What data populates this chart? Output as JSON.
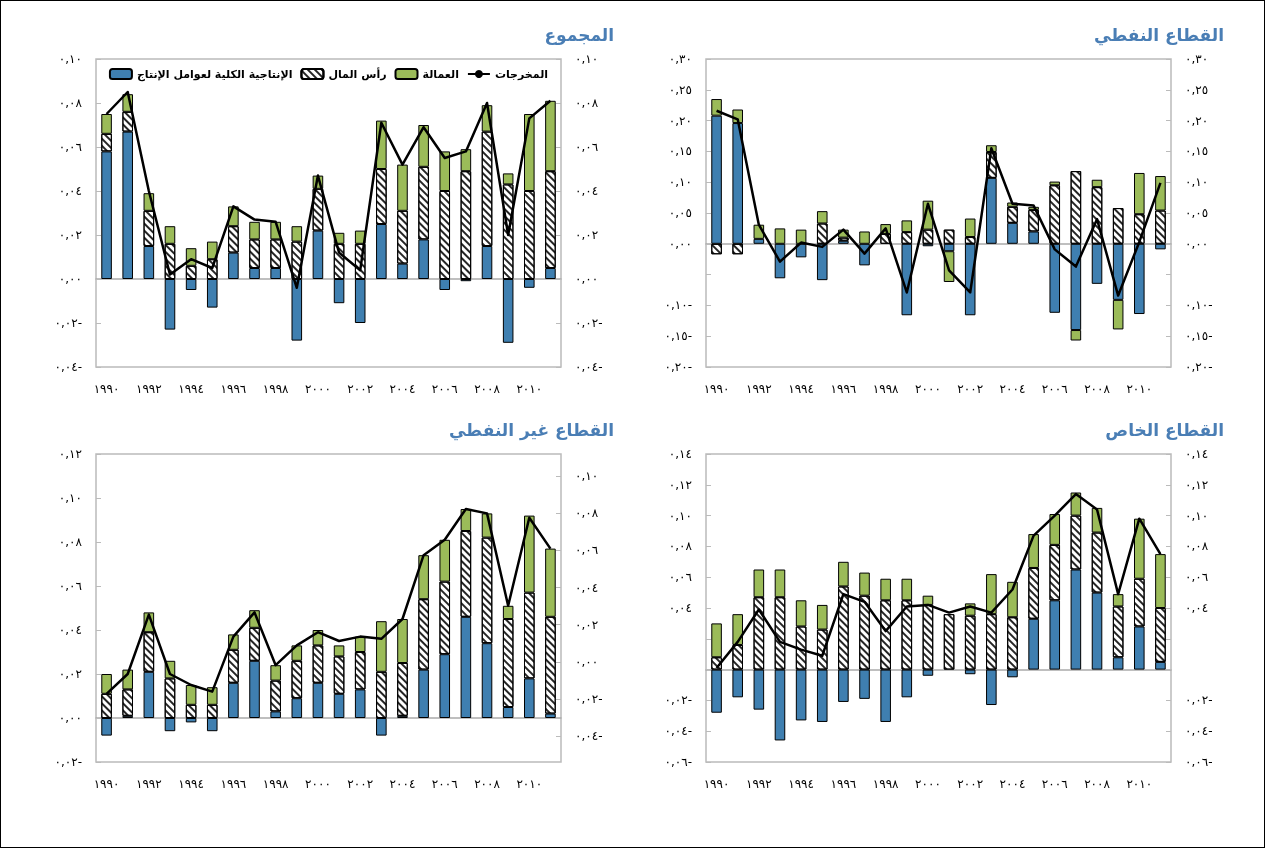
{
  "chart_data": [
    {
      "type": "bar",
      "title": "المجموع",
      "stacked": true,
      "legend": "top",
      "marker": "none",
      "categories": [
        "١٩٩٠",
        null,
        "١٩٩٢",
        null,
        "١٩٩٤",
        null,
        "١٩٩٦",
        null,
        "١٩٩٨",
        null,
        "٢٠٠٠",
        null,
        "٢٠٠٢",
        null,
        "٢٠٠٤",
        null,
        "٢٠٠٦",
        null,
        "٢٠٠٨",
        null,
        "٢٠١٠",
        null
      ],
      "ylim": [
        -0.04,
        0.1
      ],
      "yticks": [
        {
          "value": -0.04,
          "label": "٠,٠٤-"
        },
        {
          "value": -0.02,
          "label": "٠,٠٢-"
        },
        {
          "value": 0,
          "label": "٠,٠٠"
        },
        {
          "value": 0.02,
          "label": "٠,٠٢"
        },
        {
          "value": 0.04,
          "label": "٠,٠٤"
        },
        {
          "value": 0.06,
          "label": "٠,٠٦"
        },
        {
          "value": 0.08,
          "label": "٠,٠٨"
        },
        {
          "value": 0.1,
          "label": "٠,١٠"
        }
      ],
      "y2lim": [
        -0.04,
        0.1
      ],
      "y2ticks": [
        {
          "value": -0.04,
          "label": "٠,٠٤-"
        },
        {
          "value": -0.02,
          "label": "٠,٠٢-"
        },
        {
          "value": 0,
          "label": "٠,٠٠"
        },
        {
          "value": 0.02,
          "label": "٠,٠٢"
        },
        {
          "value": 0.04,
          "label": "٠,٠٤"
        },
        {
          "value": 0.06,
          "label": "٠,٠٦"
        },
        {
          "value": 0.08,
          "label": "٠,٠٨"
        },
        {
          "value": 0.1,
          "label": "٠,١٠"
        }
      ],
      "series": [
        {
          "name": "الإنتاجية الكلية لعوامل الإنتاج",
          "color": "#3f7fb0",
          "values": [
            0.058,
            0.067,
            0.015,
            -0.023,
            -0.005,
            -0.013,
            0.012,
            0.005,
            0.005,
            -0.028,
            0.022,
            -0.011,
            -0.02,
            0.025,
            0.007,
            0.018,
            -0.005,
            -0.001,
            0.015,
            -0.029,
            -0.004,
            0.005
          ]
        },
        {
          "name": "رأس المال",
          "color": "#ffffff",
          "values": [
            0.008,
            0.009,
            0.016,
            0.016,
            0.006,
            0.009,
            0.012,
            0.013,
            0.013,
            0.017,
            0.019,
            0.016,
            0.016,
            0.025,
            0.024,
            0.033,
            0.04,
            0.049,
            0.052,
            0.043,
            0.04,
            0.044
          ]
        },
        {
          "name": "العمالة",
          "color": "#9bbb59",
          "values": [
            0.009,
            0.008,
            0.008,
            0.008,
            0.008,
            0.008,
            0.009,
            0.008,
            0.008,
            0.007,
            0.006,
            0.005,
            0.006,
            0.022,
            0.021,
            0.019,
            0.018,
            0.01,
            0.012,
            0.005,
            0.035,
            0.032
          ]
        },
        {
          "name": "المخرجات",
          "type": "line",
          "color": "#000000",
          "values": [
            0.075,
            0.085,
            0.04,
            0.002,
            0.009,
            0.005,
            0.033,
            0.027,
            0.026,
            -0.004,
            0.047,
            0.012,
            0.004,
            0.071,
            0.052,
            0.069,
            0.055,
            0.058,
            0.08,
            0.02,
            0.073,
            0.081
          ]
        }
      ]
    },
    {
      "type": "bar",
      "title": "القطاع النفطي",
      "stacked": true,
      "marker": "none",
      "categories": [
        "١٩٩٠",
        null,
        "١٩٩٢",
        null,
        "١٩٩٤",
        null,
        "١٩٩٦",
        null,
        "١٩٩٨",
        null,
        "٢٠٠٠",
        null,
        "٢٠٠٢",
        null,
        "٢٠٠٤",
        null,
        "٢٠٠٦",
        null,
        "٢٠٠٨",
        null,
        "٢٠١٠",
        null
      ],
      "ylim": [
        -0.2,
        0.3
      ],
      "yticks": [
        {
          "value": -0.2,
          "label": "٠,٢٠-"
        },
        {
          "value": -0.15,
          "label": "٠,١٥-"
        },
        {
          "value": -0.1,
          "label": "٠,١٠-"
        },
        {
          "value": -0.05,
          "label": null
        },
        {
          "value": 0,
          "label": "٠,٠٠"
        },
        {
          "value": 0.05,
          "label": "٠,٠٥"
        },
        {
          "value": 0.1,
          "label": "٠,١٠"
        },
        {
          "value": 0.15,
          "label": "٠,١٥"
        },
        {
          "value": 0.2,
          "label": "٠,٢٠"
        },
        {
          "value": 0.25,
          "label": "٠,٢٥"
        },
        {
          "value": 0.3,
          "label": "٠,٣٠"
        }
      ],
      "y2lim": [
        -0.2,
        0.3
      ],
      "y2ticks": [
        {
          "value": -0.2,
          "label": "٠,٢٠-"
        },
        {
          "value": -0.15,
          "label": "٠,١٥-"
        },
        {
          "value": -0.1,
          "label": "٠,١٠-"
        },
        {
          "value": -0.05,
          "label": null
        },
        {
          "value": 0,
          "label": "٠,٠٠"
        },
        {
          "value": 0.05,
          "label": "٠,٠٥"
        },
        {
          "value": 0.1,
          "label": "٠,١٠"
        },
        {
          "value": 0.15,
          "label": "٠,١٥"
        },
        {
          "value": 0.2,
          "label": "٠,٢٠"
        },
        {
          "value": 0.25,
          "label": "٠,٢٥"
        },
        {
          "value": 0.3,
          "label": "٠,٣٠"
        }
      ],
      "series": [
        {
          "color": "#3f7fb0",
          "values": [
            0.208,
            0.196,
            0.008,
            -0.056,
            -0.022,
            -0.059,
            0.005,
            -0.035,
            null,
            -0.116,
            -0.004,
            -0.012,
            -0.116,
            0.107,
            0.034,
            0.02,
            -0.112,
            -0.14,
            -0.065,
            -0.091,
            -0.114,
            -0.009
          ]
        },
        {
          "color": "#ffffff",
          "values": [
            -0.017,
            -0.017,
            null,
            null,
            null,
            0.033,
            0.005,
            null,
            0.016,
            0.019,
            0.023,
            0.023,
            0.011,
            0.042,
            0.026,
            0.035,
            0.095,
            0.118,
            0.092,
            0.058,
            0.048,
            0.054
          ]
        },
        {
          "color": "#9bbb59",
          "values": [
            0.027,
            0.022,
            0.023,
            0.025,
            0.023,
            0.02,
            0.013,
            0.02,
            0.016,
            0.019,
            0.047,
            -0.05,
            0.03,
            0.011,
            0.007,
            0.005,
            0.006,
            -0.017,
            0.012,
            -0.048,
            0.067,
            0.056
          ]
        },
        {
          "type": "line",
          "color": "#000000",
          "values": [
            0.216,
            0.202,
            0.031,
            -0.029,
            0.002,
            -0.005,
            0.023,
            -0.016,
            0.025,
            -0.079,
            0.065,
            -0.043,
            -0.079,
            0.155,
            0.065,
            0.062,
            -0.009,
            -0.037,
            0.04,
            -0.084,
            0.003,
            0.099
          ]
        }
      ]
    },
    {
      "type": "bar",
      "title": "القطاع غير النفطي",
      "stacked": true,
      "marker": "none",
      "categories": [
        "١٩٩٠",
        null,
        "١٩٩٢",
        null,
        "١٩٩٤",
        null,
        "١٩٩٦",
        null,
        "١٩٩٨",
        null,
        "٢٠٠٠",
        null,
        "٢٠٠٢",
        null,
        "٢٠٠٤",
        null,
        "٢٠٠٦",
        null,
        "٢٠٠٨",
        null,
        "٢٠١٠",
        null
      ],
      "ylim": [
        -0.02,
        0.12
      ],
      "yticks": [
        {
          "value": -0.02,
          "label": "٠,٠٢-"
        },
        {
          "value": 0,
          "label": "٠,٠٠"
        },
        {
          "value": 0.02,
          "label": "٠,٠٢"
        },
        {
          "value": 0.04,
          "label": "٠,٠٤"
        },
        {
          "value": 0.06,
          "label": "٠,٠٦"
        },
        {
          "value": 0.08,
          "label": "٠,٠٨"
        },
        {
          "value": 0.1,
          "label": "٠,١٠"
        },
        {
          "value": 0.12,
          "label": "٠,١٢"
        }
      ],
      "y2lim": [
        -0.054,
        0.112
      ],
      "y2ticks": [
        {
          "value": -0.04,
          "label": "٠,٠٤-"
        },
        {
          "value": -0.02,
          "label": "٠,٠٢-"
        },
        {
          "value": 0,
          "label": "٠,٠٠"
        },
        {
          "value": 0.02,
          "label": "٠,٠٢"
        },
        {
          "value": 0.04,
          "label": "٠,٠٤"
        },
        {
          "value": 0.06,
          "label": "٠,٠٦"
        },
        {
          "value": 0.08,
          "label": "٠,٠٨"
        },
        {
          "value": 0.1,
          "label": "٠,١٠"
        }
      ],
      "series": [
        {
          "color": "#3f7fb0",
          "values": [
            -0.008,
            0.001,
            0.021,
            -0.006,
            -0.002,
            -0.006,
            0.016,
            0.026,
            0.003,
            0.009,
            0.016,
            0.011,
            0.013,
            -0.008,
            0.001,
            0.022,
            0.029,
            0.046,
            0.034,
            0.005,
            0.018,
            0.002
          ]
        },
        {
          "color": "#ffffff",
          "values": [
            0.011,
            0.012,
            0.018,
            0.018,
            0.006,
            0.006,
            0.015,
            0.015,
            0.014,
            0.017,
            0.017,
            0.017,
            0.017,
            0.021,
            0.024,
            0.032,
            0.033,
            0.039,
            0.048,
            0.04,
            0.039,
            0.044
          ]
        },
        {
          "color": "#9bbb59",
          "values": [
            0.009,
            0.009,
            0.009,
            0.008,
            0.009,
            0.008,
            0.007,
            0.008,
            0.007,
            0.007,
            0.007,
            0.005,
            0.007,
            0.023,
            0.02,
            0.02,
            0.019,
            0.01,
            0.011,
            0.006,
            0.035,
            0.031
          ]
        },
        {
          "type": "line",
          "color": "#000000",
          "values": [
            0.011,
            0.02,
            0.047,
            0.02,
            0.015,
            0.012,
            0.037,
            0.048,
            0.024,
            0.033,
            0.039,
            0.035,
            0.037,
            0.036,
            0.045,
            0.074,
            0.081,
            0.095,
            0.093,
            0.051,
            0.091,
            0.077
          ]
        }
      ]
    },
    {
      "type": "bar",
      "title": "القطاع الخاص",
      "stacked": true,
      "marker": "none",
      "categories": [
        "١٩٩٠",
        null,
        "١٩٩٢",
        null,
        "١٩٩٤",
        null,
        "١٩٩٦",
        null,
        "١٩٩٨",
        null,
        "٢٠٠٠",
        null,
        "٢٠٠٢",
        null,
        "٢٠٠٤",
        null,
        "٢٠٠٦",
        null,
        "٢٠٠٨",
        null,
        "٢٠١٠",
        null
      ],
      "ylim": [
        -0.06,
        0.14
      ],
      "yticks": [
        {
          "value": -0.06,
          "label": "٠,٠٦-"
        },
        {
          "value": -0.04,
          "label": "٠,٠٤-"
        },
        {
          "value": -0.02,
          "label": "٠,٠٢-"
        },
        {
          "value": 0,
          "label": null
        },
        {
          "value": 0.02,
          "label": null
        },
        {
          "value": 0.04,
          "label": "٠,٠٤"
        },
        {
          "value": 0.06,
          "label": "٠,٠٦"
        },
        {
          "value": 0.08,
          "label": "٠,٠٨"
        },
        {
          "value": 0.1,
          "label": "٠,١٠"
        },
        {
          "value": 0.12,
          "label": "٠,١٢"
        },
        {
          "value": 0.14,
          "label": "٠,١٤"
        }
      ],
      "y2lim": [
        -0.06,
        0.14
      ],
      "y2ticks": [
        {
          "value": -0.06,
          "label": "٠,٠٦-"
        },
        {
          "value": -0.04,
          "label": "٠,٠٤-"
        },
        {
          "value": -0.02,
          "label": "٠,٠٢-"
        },
        {
          "value": 0,
          "label": null
        },
        {
          "value": 0.02,
          "label": null
        },
        {
          "value": 0.04,
          "label": "٠,٠٤"
        },
        {
          "value": 0.06,
          "label": "٠,٠٦"
        },
        {
          "value": 0.08,
          "label": "٠,٠٨"
        },
        {
          "value": 0.1,
          "label": "٠,١٠"
        },
        {
          "value": 0.12,
          "label": "٠,١٢"
        },
        {
          "value": 0.14,
          "label": "٠,١٤"
        }
      ],
      "series": [
        {
          "color": "#3f7fb0",
          "values": [
            -0.028,
            -0.018,
            -0.026,
            -0.046,
            -0.033,
            -0.034,
            -0.021,
            -0.019,
            -0.034,
            -0.018,
            -0.004,
            null,
            -0.003,
            -0.023,
            -0.005,
            0.033,
            0.045,
            0.065,
            0.05,
            0.008,
            0.028,
            0.005
          ]
        },
        {
          "color": "#ffffff",
          "values": [
            0.008,
            0.016,
            0.047,
            0.047,
            0.028,
            0.026,
            0.054,
            0.048,
            0.045,
            0.045,
            0.042,
            0.036,
            0.035,
            0.036,
            0.034,
            0.033,
            0.036,
            0.035,
            0.039,
            0.033,
            0.031,
            0.035
          ]
        },
        {
          "color": "#9bbb59",
          "values": [
            0.022,
            0.02,
            0.018,
            0.018,
            0.017,
            0.016,
            0.016,
            0.015,
            0.014,
            0.014,
            0.006,
            null,
            0.008,
            0.026,
            0.023,
            0.022,
            0.02,
            0.015,
            0.016,
            0.008,
            0.039,
            0.035
          ]
        },
        {
          "type": "line",
          "color": "#000000",
          "values": [
            0.001,
            0.018,
            0.039,
            0.018,
            0.013,
            0.009,
            0.049,
            0.044,
            0.025,
            0.041,
            0.042,
            0.037,
            0.041,
            0.037,
            0.052,
            0.087,
            0.1,
            0.114,
            0.104,
            0.049,
            0.098,
            0.075
          ]
        }
      ]
    }
  ]
}
